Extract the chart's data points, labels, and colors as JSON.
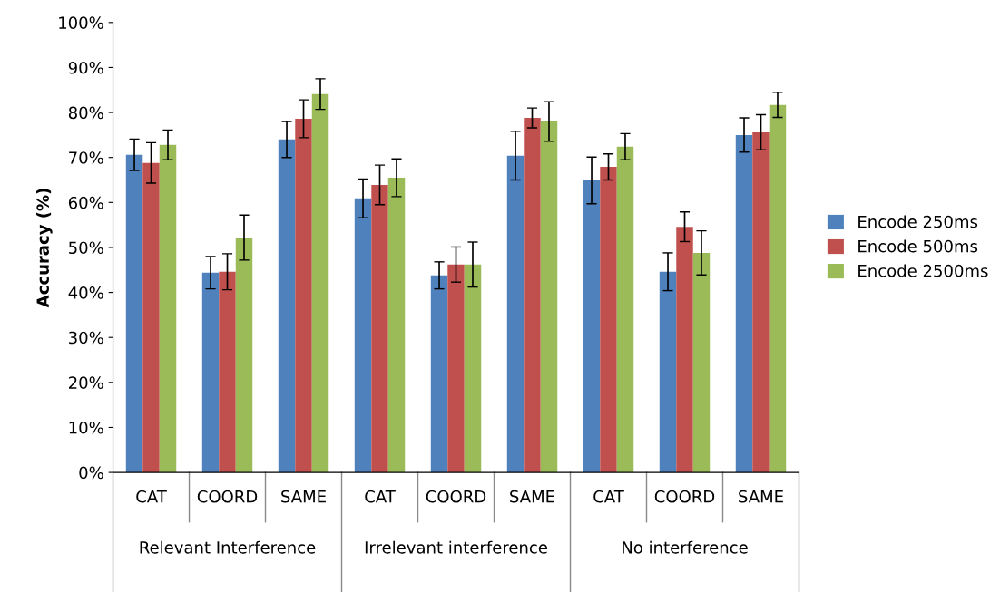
{
  "chart_data": {
    "type": "bar",
    "ylabel": "Accuracy (%)",
    "categories": [
      "CAT",
      "COORD",
      "SAME",
      "CAT",
      "COORD",
      "SAME",
      "CAT",
      "COORD",
      "SAME"
    ],
    "series": [
      {
        "name": "Encode 250ms",
        "color": "#4f81bd",
        "values": [
          70.6,
          44.4,
          74.0,
          60.9,
          43.8,
          70.4,
          64.9,
          44.6,
          75.0
        ],
        "errors": [
          3.5,
          3.6,
          4.0,
          4.3,
          3.0,
          5.4,
          5.2,
          4.2,
          3.8
        ]
      },
      {
        "name": "Encode 500ms",
        "color": "#c0504d",
        "values": [
          68.8,
          44.6,
          78.6,
          63.9,
          46.2,
          78.8,
          67.9,
          54.6,
          75.6
        ],
        "errors": [
          4.5,
          4.0,
          4.2,
          4.4,
          3.9,
          2.2,
          2.9,
          3.3,
          3.9
        ]
      },
      {
        "name": "Encode 2500ms",
        "color": "#9bbb59",
        "values": [
          72.8,
          52.2,
          84.1,
          65.5,
          46.2,
          78.0,
          72.4,
          48.8,
          81.7
        ],
        "errors": [
          3.3,
          5.0,
          3.4,
          4.2,
          5.0,
          4.4,
          2.9,
          4.9,
          2.8
        ]
      }
    ],
    "annotations": [
      "Relevant Interference",
      "Irrelevant interference",
      "No interference"
    ],
    "ylim": [
      0,
      100
    ],
    "yticks": [
      {
        "value": 0,
        "label": "0%"
      },
      {
        "value": 10,
        "label": "10%"
      },
      {
        "value": 20,
        "label": "20%"
      },
      {
        "value": 30,
        "label": "30%"
      },
      {
        "value": 40,
        "label": "40%"
      },
      {
        "value": 50,
        "label": "50%"
      },
      {
        "value": 60,
        "label": "60%"
      },
      {
        "value": 70,
        "label": "70%"
      },
      {
        "value": 80,
        "label": "80%"
      },
      {
        "value": 90,
        "label": "90%"
      },
      {
        "value": 100,
        "label": "100%"
      }
    ],
    "grid": false,
    "legend": "right"
  }
}
